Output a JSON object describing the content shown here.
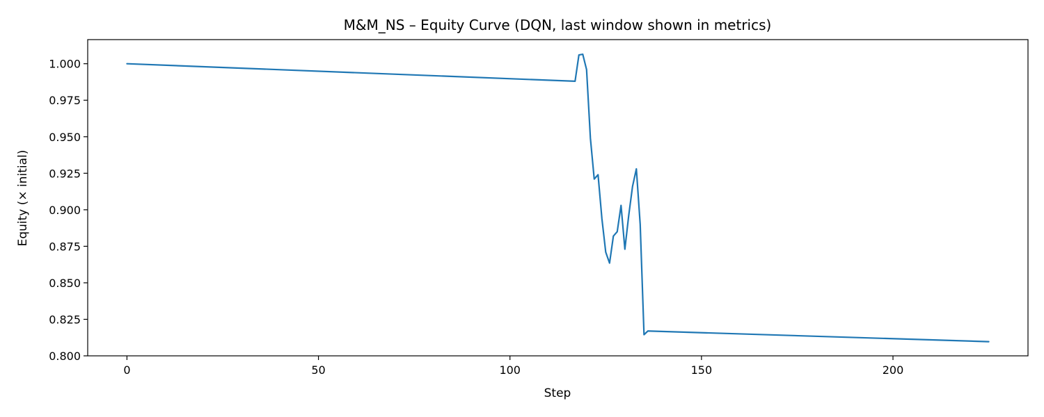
{
  "chart_data": {
    "type": "line",
    "title": "M&M_NS – Equity Curve (DQN, last window shown in metrics)",
    "xlabel": "Step",
    "ylabel": "Equity (× initial)",
    "xlim": [
      -10.25,
      235.25
    ],
    "ylim": [
      0.8,
      1.0165
    ],
    "xticks": [
      0,
      50,
      100,
      150,
      200
    ],
    "xtick_labels": [
      "0",
      "50",
      "100",
      "150",
      "200"
    ],
    "yticks": [
      0.8,
      0.825,
      0.85,
      0.875,
      0.9,
      0.925,
      0.95,
      0.975,
      1.0
    ],
    "ytick_labels": [
      "0.800",
      "0.825",
      "0.850",
      "0.875",
      "0.900",
      "0.925",
      "0.950",
      "0.975",
      "1.000"
    ],
    "grid": false,
    "legend": "none",
    "series": [
      {
        "color": "#1f77b4",
        "x": [
          0,
          117,
          118,
          119,
          120,
          121,
          122,
          123,
          124,
          125,
          126,
          127,
          128,
          129,
          130,
          131,
          132,
          133,
          134,
          135,
          136,
          225
        ],
        "y": [
          1.0,
          0.988,
          1.006,
          1.0065,
          0.996,
          0.949,
          0.921,
          0.924,
          0.894,
          0.871,
          0.8635,
          0.882,
          0.885,
          0.903,
          0.873,
          0.896,
          0.916,
          0.928,
          0.89,
          0.8145,
          0.817,
          0.8097
        ]
      }
    ]
  }
}
